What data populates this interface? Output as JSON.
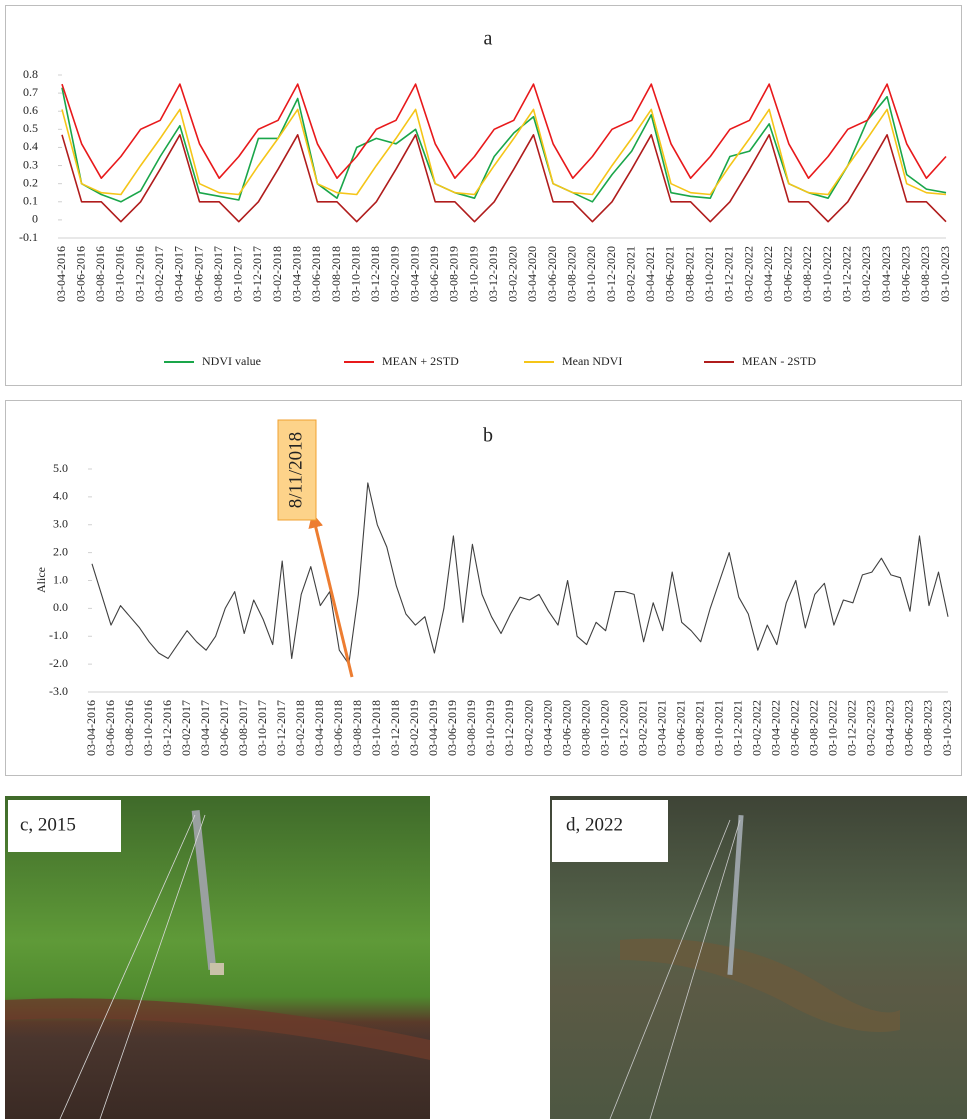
{
  "chart_data": [
    {
      "type": "line",
      "title": "a",
      "legend": "bottom",
      "categories": [
        "03-04-2016",
        "03-06-2016",
        "03-08-2016",
        "03-10-2016",
        "03-12-2016",
        "03-02-2017",
        "03-04-2017",
        "03-06-2017",
        "03-08-2017",
        "03-10-2017",
        "03-12-2017",
        "03-02-2018",
        "03-04-2018",
        "03-06-2018",
        "03-08-2018",
        "03-10-2018",
        "03-12-2018",
        "03-02-2019",
        "03-04-2019",
        "03-06-2019",
        "03-08-2019",
        "03-10-2019",
        "03-12-2019",
        "03-02-2020",
        "03-04-2020",
        "03-06-2020",
        "03-08-2020",
        "03-10-2020",
        "03-12-2020",
        "03-02-2021",
        "03-04-2021",
        "03-06-2021",
        "03-08-2021",
        "03-10-2021",
        "03-12-2021",
        "03-02-2022",
        "03-04-2022",
        "03-06-2022",
        "03-08-2022",
        "03-10-2022",
        "03-12-2022",
        "03-02-2023",
        "03-04-2023",
        "03-06-2023",
        "03-08-2023",
        "03-10-2023"
      ],
      "series": [
        {
          "name": "NDVI value",
          "color": "#1aa64a",
          "values": [
            0.73,
            0.2,
            0.14,
            0.1,
            0.16,
            0.35,
            0.52,
            0.15,
            0.13,
            0.11,
            0.45,
            0.45,
            0.67,
            0.2,
            0.12,
            0.4,
            0.45,
            0.42,
            0.5,
            0.2,
            0.15,
            0.12,
            0.35,
            0.48,
            0.57,
            0.2,
            0.15,
            0.1,
            0.25,
            0.38,
            0.58,
            0.15,
            0.13,
            0.12,
            0.35,
            0.38,
            0.53,
            0.2,
            0.15,
            0.12,
            0.3,
            0.55,
            0.68,
            0.25,
            0.17,
            0.15
          ]
        },
        {
          "name": "MEAN + 2STD",
          "color": "#e8191b",
          "values": [
            0.75,
            0.42,
            0.23,
            0.35,
            0.5,
            0.55,
            0.75,
            0.42,
            0.23,
            0.35,
            0.5,
            0.55,
            0.75,
            0.42,
            0.23,
            0.35,
            0.5,
            0.55,
            0.75,
            0.42,
            0.23,
            0.35,
            0.5,
            0.55,
            0.75,
            0.42,
            0.23,
            0.35,
            0.5,
            0.55,
            0.75,
            0.42,
            0.23,
            0.35,
            0.5,
            0.55,
            0.75,
            0.42,
            0.23,
            0.35,
            0.5,
            0.55,
            0.75,
            0.42,
            0.23,
            0.35
          ]
        },
        {
          "name": "Mean NDVI",
          "color": "#f5c518",
          "values": [
            0.61,
            0.2,
            0.15,
            0.14,
            0.3,
            0.45,
            0.61,
            0.2,
            0.15,
            0.14,
            0.3,
            0.45,
            0.61,
            0.2,
            0.15,
            0.14,
            0.3,
            0.45,
            0.61,
            0.2,
            0.15,
            0.14,
            0.3,
            0.45,
            0.61,
            0.2,
            0.15,
            0.14,
            0.3,
            0.45,
            0.61,
            0.2,
            0.15,
            0.14,
            0.3,
            0.45,
            0.61,
            0.2,
            0.15,
            0.14,
            0.3,
            0.45,
            0.61,
            0.2,
            0.15,
            0.14
          ]
        },
        {
          "name": "MEAN - 2STD",
          "color": "#b01c1c",
          "values": [
            0.47,
            0.1,
            0.1,
            -0.01,
            0.1,
            0.28,
            0.47,
            0.1,
            0.1,
            -0.01,
            0.1,
            0.28,
            0.47,
            0.1,
            0.1,
            -0.01,
            0.1,
            0.28,
            0.47,
            0.1,
            0.1,
            -0.01,
            0.1,
            0.28,
            0.47,
            0.1,
            0.1,
            -0.01,
            0.1,
            0.28,
            0.47,
            0.1,
            0.1,
            -0.01,
            0.1,
            0.28,
            0.47,
            0.1,
            0.1,
            -0.01,
            0.1,
            0.28,
            0.47,
            0.1,
            0.1,
            -0.01
          ]
        }
      ],
      "ylim": [
        -0.1,
        0.8
      ],
      "yticks": [
        -0.1,
        0,
        0.1,
        0.2,
        0.3,
        0.4,
        0.5,
        0.6,
        0.7,
        0.8
      ]
    },
    {
      "type": "line",
      "title": "b",
      "y_label": "Alice",
      "annotation": "8/11/2018",
      "categories": [
        "03-04-2016",
        null,
        "03-06-2016",
        null,
        "03-08-2016",
        null,
        "03-10-2016",
        null,
        "03-12-2016",
        null,
        "03-02-2017",
        null,
        "03-04-2017",
        null,
        "03-06-2017",
        null,
        "03-08-2017",
        null,
        "03-10-2017",
        null,
        "03-12-2017",
        null,
        "03-02-2018",
        null,
        "03-04-2018",
        null,
        "03-06-2018",
        null,
        "03-08-2018",
        null,
        "03-10-2018",
        null,
        "03-12-2018",
        null,
        "03-02-2019",
        null,
        "03-04-2019",
        null,
        "03-06-2019",
        null,
        "03-08-2019",
        null,
        "03-10-2019",
        null,
        "03-12-2019",
        null,
        "03-02-2020",
        null,
        "03-04-2020",
        null,
        "03-06-2020",
        null,
        "03-08-2020",
        null,
        "03-10-2020",
        null,
        "03-12-2020",
        null,
        "03-02-2021",
        null,
        "03-04-2021",
        null,
        "03-06-2021",
        null,
        "03-08-2021",
        null,
        "03-10-2021",
        null,
        "03-12-2021",
        null,
        "03-02-2022",
        null,
        "03-04-2022",
        null,
        "03-06-2022",
        null,
        "03-08-2022",
        null,
        "03-10-2022",
        null,
        "03-12-2022",
        null,
        "03-02-2023",
        null,
        "03-04-2023",
        null,
        "03-06-2023",
        null,
        "03-08-2023",
        null,
        "03-10-2023"
      ],
      "series": [
        {
          "name": "Alice",
          "color": "#404040",
          "values": [
            1.6,
            0.5,
            -0.6,
            0.1,
            -0.3,
            -0.7,
            -1.2,
            -1.6,
            -1.8,
            -1.3,
            -0.8,
            -1.2,
            -1.5,
            -1.0,
            0.0,
            0.6,
            -0.9,
            0.3,
            -0.4,
            -1.3,
            1.7,
            -1.8,
            0.5,
            1.5,
            0.1,
            0.6,
            -1.5,
            -2.0,
            0.5,
            4.5,
            3.0,
            2.2,
            0.8,
            -0.2,
            -0.6,
            -0.3,
            -1.6,
            0.0,
            2.6,
            -0.5,
            2.3,
            0.5,
            -0.3,
            -0.9,
            -0.2,
            0.4,
            0.3,
            0.5,
            -0.1,
            -0.6,
            1.0,
            -1.0,
            -1.3,
            -0.5,
            -0.8,
            0.6,
            0.6,
            0.5,
            -1.2,
            0.2,
            -0.8,
            1.3,
            -0.5,
            -0.8,
            -1.2,
            0.0,
            1.0,
            2.0,
            0.4,
            -0.2,
            -1.5,
            -0.6,
            -1.3,
            0.2,
            1.0,
            -0.7,
            0.5,
            0.9,
            -0.6,
            0.3,
            0.2,
            1.2,
            1.3,
            1.8,
            1.2,
            1.1,
            -0.1,
            2.6,
            0.1,
            1.3,
            -0.3
          ]
        }
      ],
      "ylim": [
        -3,
        5
      ],
      "yticks": [
        {
          "value": -3,
          "label": "-3.0"
        },
        {
          "value": -2,
          "label": "-2.0"
        },
        {
          "value": -1,
          "label": "-1.0"
        },
        {
          "value": 0,
          "label": "0.0"
        },
        {
          "value": 1,
          "label": "1.0"
        },
        {
          "value": 2,
          "label": "2.0"
        },
        {
          "value": 3,
          "label": "3.0"
        },
        {
          "value": 4,
          "label": "4.0"
        },
        {
          "value": 5,
          "label": "5.0"
        }
      ]
    }
  ],
  "photos": [
    "c, 2015",
    "d, 2022"
  ]
}
